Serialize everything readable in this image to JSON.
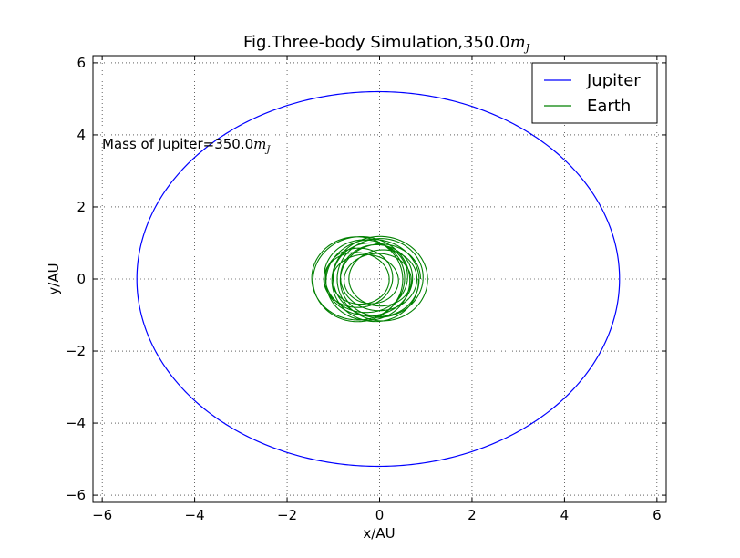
{
  "chart_data": {
    "type": "line",
    "title": "Fig.Three-body Simulation,350.0",
    "title_math": "m",
    "title_math_sub": "J",
    "xlabel": "x/AU",
    "ylabel": "y/AU",
    "xlim": [
      -6.2,
      6.2
    ],
    "ylim": [
      -6.2,
      6.2
    ],
    "xticks": [
      -6,
      -4,
      -2,
      0,
      2,
      4,
      6
    ],
    "yticks": [
      -6,
      -4,
      -2,
      0,
      2,
      4,
      6
    ],
    "xtick_labels": [
      "−6",
      "−4",
      "−2",
      "0",
      "2",
      "4",
      "6"
    ],
    "ytick_labels": [
      "−6",
      "−4",
      "−2",
      "0",
      "2",
      "4",
      "6"
    ],
    "grid": true,
    "legend_position": "top-right",
    "annotation": {
      "text": "Mass of Jupiter=350.0",
      "math": "m",
      "math_sub": "J"
    },
    "series": [
      {
        "name": "Jupiter",
        "color": "#0000ff",
        "orbit": {
          "center_x": -0.03,
          "center_y": 0.0,
          "radius_x": 5.22,
          "radius_y": 5.2
        }
      },
      {
        "name": "Earth",
        "color": "#008000",
        "orbit": {
          "radius_min_x": 0.65,
          "radius_max_x": 1.0,
          "radius_min_y": 0.7,
          "radius_max_y": 1.22,
          "center_x": -0.22,
          "center_y": 0.0,
          "loops": 14
        }
      }
    ]
  }
}
